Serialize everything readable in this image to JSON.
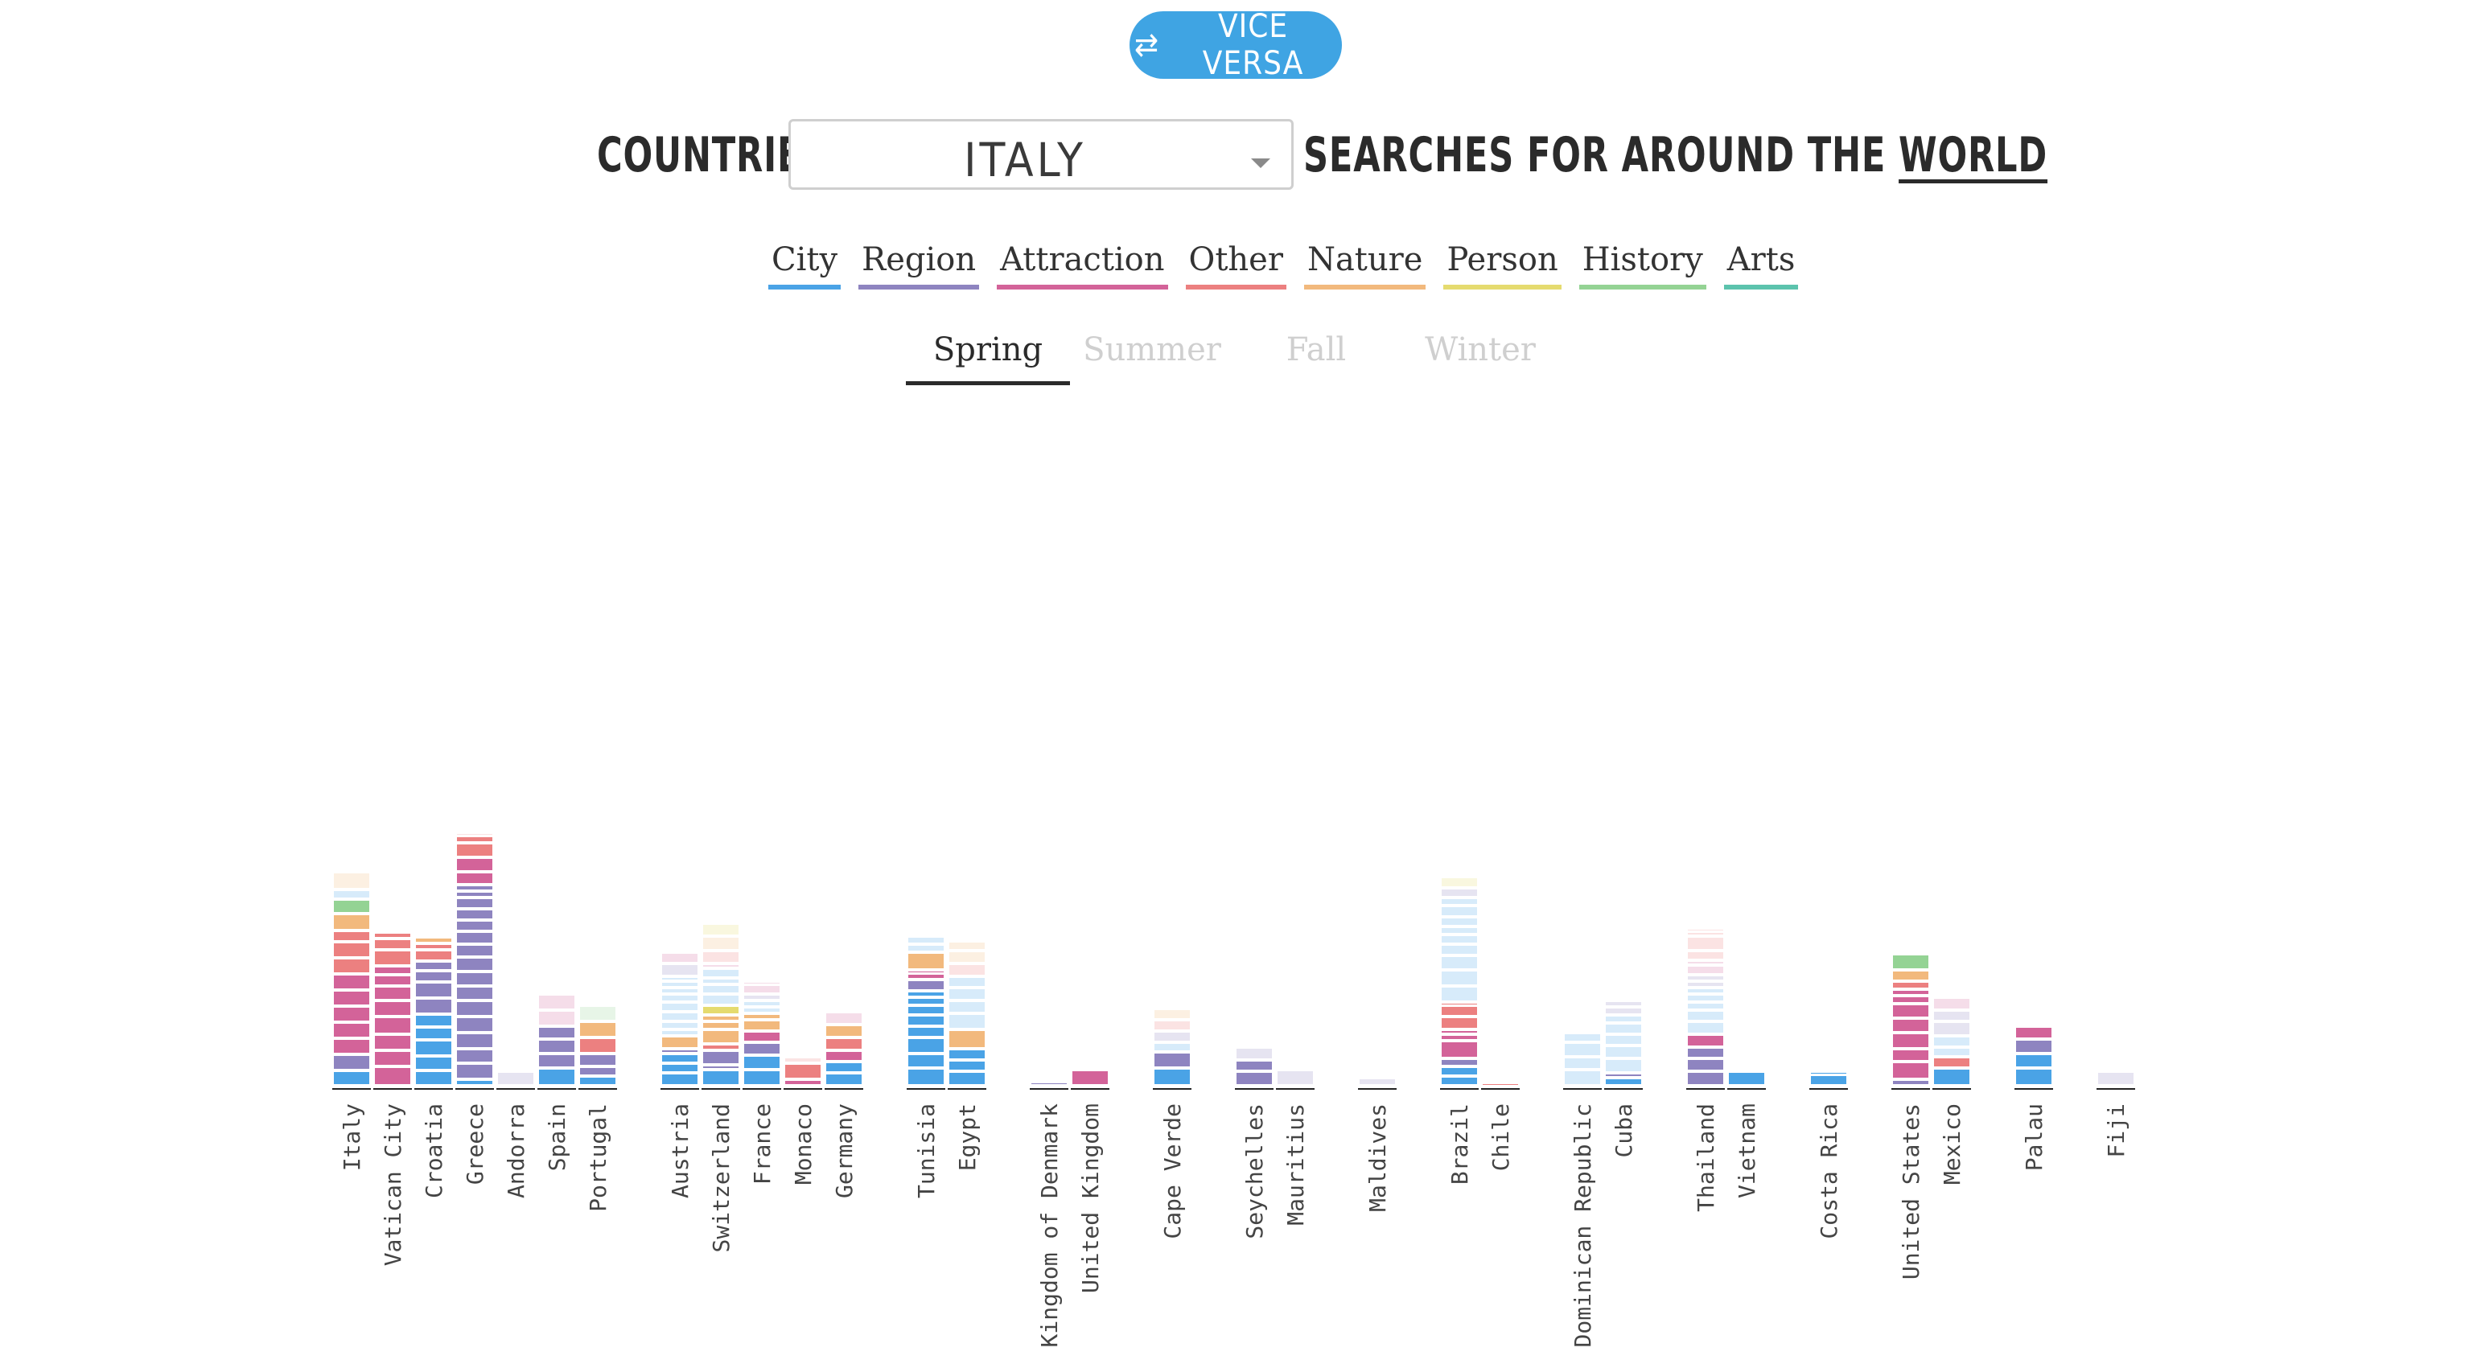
{
  "toggle": {
    "label": "VICE VERSA",
    "icon": "swap-arrows-icon"
  },
  "headline": {
    "prefix": "COUNTRIES",
    "selected_country": "ITALY",
    "suffix_1": "SEARCHES FOR AROUND THE",
    "suffix_link": "WORLD"
  },
  "categories": [
    {
      "label": "City",
      "color": "#4aa3e6"
    },
    {
      "label": "Region",
      "color": "#8e84c0"
    },
    {
      "label": "Attraction",
      "color": "#d36399"
    },
    {
      "label": "Other",
      "color": "#ec8080"
    },
    {
      "label": "Nature",
      "color": "#f2b97d"
    },
    {
      "label": "Person",
      "color": "#e5db6f"
    },
    {
      "label": "History",
      "color": "#94d394"
    },
    {
      "label": "Arts",
      "color": "#5cc3ad"
    }
  ],
  "seasons": [
    "Spring",
    "Summer",
    "Fall",
    "Winter"
  ],
  "active_season": "Spring",
  "chart_data": {
    "type": "bar",
    "subtype": "stacked-segments",
    "categories": [
      "Italy",
      "Vatican City",
      "Croatia",
      "Greece",
      "Andorra",
      "Spain",
      "Portugal",
      "Austria",
      "Switzerland",
      "France",
      "Monaco",
      "Germany",
      "Tunisia",
      "Egypt",
      "Kingdom of Denmark",
      "United Kingdom",
      "Cape Verde",
      "Seychelles",
      "Mauritius",
      "Maldives",
      "Brazil",
      "Chile",
      "Dominican Republic",
      "Cuba",
      "Thailand",
      "Vietnam",
      "Costa Rica",
      "United States",
      "Mexico",
      "Palau",
      "Fiji"
    ],
    "groups": [
      [
        0,
        1,
        2,
        3,
        4,
        5,
        6
      ],
      [
        7,
        8,
        9,
        10,
        11
      ],
      [
        12,
        13
      ],
      [
        14,
        15
      ],
      [
        16
      ],
      [
        17,
        18
      ],
      [
        19
      ],
      [
        20,
        21
      ],
      [
        22,
        23
      ],
      [
        24,
        25
      ],
      [
        26
      ],
      [
        27,
        28
      ],
      [
        29
      ],
      [
        30
      ]
    ],
    "stacks": [
      [
        [
          "City",
          19
        ],
        [
          "Region",
          20
        ],
        [
          "Attraction",
          20
        ],
        [
          "Attraction",
          20
        ],
        [
          "Attraction",
          20
        ],
        [
          "Attraction",
          20
        ],
        [
          "Attraction",
          20
        ],
        [
          "Other",
          20
        ],
        [
          "Other",
          20
        ],
        [
          "Other",
          14
        ],
        [
          "Nature",
          21
        ],
        [
          "History",
          18
        ],
        [
          "City",
          12,
          true
        ],
        [
          "Nature",
          22,
          true
        ]
      ],
      [
        [
          "Attraction",
          24
        ],
        [
          "Attraction",
          20
        ],
        [
          "Attraction",
          20
        ],
        [
          "Attraction",
          22
        ],
        [
          "Attraction",
          20
        ],
        [
          "Attraction",
          18
        ],
        [
          "Attraction",
          14
        ],
        [
          "Attraction",
          11
        ],
        [
          "Other",
          20
        ],
        [
          "Other",
          14
        ],
        [
          "Other",
          8
        ]
      ],
      [
        [
          "City",
          19
        ],
        [
          "City",
          18
        ],
        [
          "City",
          20
        ],
        [
          "City",
          16
        ],
        [
          "City",
          16
        ],
        [
          "Region",
          20
        ],
        [
          "Region",
          20
        ],
        [
          "Region",
          14
        ],
        [
          "Region",
          12
        ],
        [
          "Other",
          14
        ],
        [
          "Other",
          8
        ],
        [
          "Nature",
          8
        ]
      ],
      [
        [
          "City",
          8
        ],
        [
          "Region",
          20
        ],
        [
          "Region",
          18
        ],
        [
          "Region",
          20
        ],
        [
          "Region",
          20
        ],
        [
          "Region",
          20
        ],
        [
          "Region",
          18
        ],
        [
          "Region",
          18
        ],
        [
          "Region",
          18
        ],
        [
          "Region",
          16
        ],
        [
          "Region",
          16
        ],
        [
          "Region",
          14
        ],
        [
          "Region",
          14
        ],
        [
          "Region",
          14
        ],
        [
          "Region",
          8
        ],
        [
          "Region",
          8
        ],
        [
          "Attraction",
          16
        ],
        [
          "Attraction",
          18
        ],
        [
          "Other",
          18
        ],
        [
          "Other",
          9
        ],
        [
          "Other",
          4,
          true
        ]
      ],
      [
        [
          "Region",
          18,
          true
        ]
      ],
      [
        [
          "City",
          22
        ],
        [
          "Region",
          18
        ],
        [
          "Region",
          18
        ],
        [
          "Region",
          16
        ],
        [
          "Attraction",
          20,
          true
        ],
        [
          "Attraction",
          20,
          true
        ]
      ],
      [
        [
          "City",
          12
        ],
        [
          "Region",
          12
        ],
        [
          "Region",
          16
        ],
        [
          "Other",
          20
        ],
        [
          "Nature",
          20
        ],
        [
          "History",
          20,
          true
        ]
      ],
      [
        [
          "City",
          16
        ],
        [
          "City",
          12
        ],
        [
          "City",
          12
        ],
        [
          "Region",
          6
        ],
        [
          "Nature",
          16
        ],
        [
          "City",
          8,
          true
        ],
        [
          "City",
          10,
          true
        ],
        [
          "City",
          12,
          true
        ],
        [
          "City",
          12,
          true
        ],
        [
          "City",
          10,
          true
        ],
        [
          "City",
          8,
          true
        ],
        [
          "City",
          8,
          true
        ],
        [
          "City",
          6,
          true
        ],
        [
          "Region",
          16,
          true
        ],
        [
          "Attraction",
          14,
          true
        ]
      ],
      [
        [
          "City",
          20
        ],
        [
          "Region",
          6
        ],
        [
          "Region",
          18
        ],
        [
          "Other",
          8
        ],
        [
          "Nature",
          18
        ],
        [
          "Nature",
          10
        ],
        [
          "Nature",
          8
        ],
        [
          "Person",
          12
        ],
        [
          "City",
          14,
          true
        ],
        [
          "City",
          12,
          true
        ],
        [
          "City",
          8,
          true
        ],
        [
          "City",
          12,
          true
        ],
        [
          "Attraction",
          6,
          true
        ],
        [
          "Other",
          16,
          true
        ],
        [
          "Nature",
          18,
          true
        ],
        [
          "Person",
          16,
          true
        ]
      ],
      [
        [
          "City",
          20
        ],
        [
          "City",
          18
        ],
        [
          "Region",
          16
        ],
        [
          "Attraction",
          14
        ],
        [
          "Nature",
          14
        ],
        [
          "Nature",
          8
        ],
        [
          "City",
          8,
          true
        ],
        [
          "City",
          8,
          true
        ],
        [
          "Region",
          8,
          true
        ],
        [
          "Attraction",
          12,
          true
        ],
        [
          "Attraction",
          4,
          true
        ]
      ],
      [
        [
          "Attraction",
          8
        ],
        [
          "Other",
          20
        ],
        [
          "Other",
          8,
          true
        ]
      ],
      [
        [
          "City",
          16
        ],
        [
          "City",
          14
        ],
        [
          "Attraction",
          14
        ],
        [
          "Other",
          16
        ],
        [
          "Nature",
          16
        ],
        [
          "Attraction",
          16,
          true
        ]
      ],
      [
        [
          "City",
          22
        ],
        [
          "City",
          18
        ],
        [
          "City",
          20
        ],
        [
          "City",
          14
        ],
        [
          "City",
          14
        ],
        [
          "City",
          12
        ],
        [
          "City",
          10
        ],
        [
          "City",
          8
        ],
        [
          "Region",
          14
        ],
        [
          "Attraction",
          8
        ],
        [
          "Attraction",
          4
        ],
        [
          "Nature",
          22
        ],
        [
          "City",
          10,
          true
        ],
        [
          "City",
          10,
          true
        ]
      ],
      [
        [
          "City",
          18
        ],
        [
          "City",
          14
        ],
        [
          "City",
          14
        ],
        [
          "Nature",
          24
        ],
        [
          "City",
          20,
          true
        ],
        [
          "City",
          16,
          true
        ],
        [
          "City",
          16,
          true
        ],
        [
          "City",
          14,
          true
        ],
        [
          "Other",
          16,
          true
        ],
        [
          "Nature",
          16,
          true
        ],
        [
          "Nature",
          12,
          true
        ]
      ],
      [
        [
          "Region",
          5
        ]
      ],
      [
        [
          "Attraction",
          20
        ]
      ],
      [
        [
          "City",
          22
        ],
        [
          "Region",
          20
        ],
        [
          "City",
          12,
          true
        ],
        [
          "Region",
          14,
          true
        ],
        [
          "Other",
          14,
          true
        ],
        [
          "Nature",
          14,
          true
        ]
      ],
      [
        [
          "Region",
          18
        ],
        [
          "Region",
          14
        ],
        [
          "Region",
          16,
          true
        ]
      ],
      [
        [
          "Region",
          20,
          true
        ]
      ],
      [
        [
          "Region",
          10,
          true
        ]
      ],
      [
        [
          "City",
          12
        ],
        [
          "City",
          12
        ],
        [
          "Region",
          10
        ],
        [
          "Attraction",
          22
        ],
        [
          "Attraction",
          8
        ],
        [
          "Attraction",
          6
        ],
        [
          "Other",
          16
        ],
        [
          "Other",
          14
        ],
        [
          "Other",
          4
        ],
        [
          "City",
          20,
          true
        ],
        [
          "City",
          20,
          true
        ],
        [
          "City",
          18,
          true
        ],
        [
          "City",
          14,
          true
        ],
        [
          "City",
          12,
          true
        ],
        [
          "City",
          10,
          true
        ],
        [
          "City",
          12,
          true
        ],
        [
          "City",
          14,
          true
        ],
        [
          "City",
          10,
          true
        ],
        [
          "Region",
          12,
          true
        ],
        [
          "Person",
          14,
          true
        ]
      ],
      [
        [
          "Other",
          4
        ]
      ],
      [
        [
          "City",
          20,
          true
        ],
        [
          "City",
          16,
          true
        ],
        [
          "City",
          18,
          true
        ],
        [
          "City",
          12,
          true
        ]
      ],
      [
        [
          "City",
          10
        ],
        [
          "Region",
          6
        ],
        [
          "City",
          18,
          true
        ],
        [
          "City",
          16,
          true
        ],
        [
          "City",
          14,
          true
        ],
        [
          "City",
          14,
          true
        ],
        [
          "City",
          10,
          true
        ],
        [
          "Region",
          10,
          true
        ],
        [
          "Region",
          8,
          true
        ]
      ],
      [
        [
          "Region",
          18
        ],
        [
          "Region",
          16
        ],
        [
          "Region",
          14
        ],
        [
          "Attraction",
          16
        ],
        [
          "City",
          16,
          true
        ],
        [
          "City",
          14,
          true
        ],
        [
          "City",
          10,
          true
        ],
        [
          "City",
          10,
          true
        ],
        [
          "City",
          8,
          true
        ],
        [
          "Region",
          8,
          true
        ],
        [
          "Region",
          8,
          true
        ],
        [
          "Attraction",
          12,
          true
        ],
        [
          "Attraction",
          6,
          true
        ],
        [
          "Other",
          12,
          true
        ],
        [
          "Other",
          18,
          true
        ],
        [
          "Other",
          6,
          true
        ],
        [
          "Other",
          4,
          true
        ]
      ],
      [
        [
          "City",
          18
        ]
      ],
      [
        [
          "City",
          14
        ],
        [
          "City",
          4
        ]
      ],
      [
        [
          "Region",
          8
        ],
        [
          "Attraction",
          22
        ],
        [
          "Attraction",
          16
        ],
        [
          "Attraction",
          20
        ],
        [
          "Attraction",
          18
        ],
        [
          "Attraction",
          18
        ],
        [
          "Attraction",
          10
        ],
        [
          "Attraction",
          8
        ],
        [
          "Other",
          10
        ],
        [
          "Nature",
          14
        ],
        [
          "History",
          20
        ]
      ],
      [
        [
          "City",
          22
        ],
        [
          "Other",
          14
        ],
        [
          "City",
          12,
          true
        ],
        [
          "City",
          14,
          true
        ],
        [
          "Region",
          18,
          true
        ],
        [
          "Region",
          14,
          true
        ],
        [
          "Attraction",
          16,
          true
        ]
      ],
      [
        [
          "City",
          22
        ],
        [
          "City",
          18
        ],
        [
          "Region",
          18
        ],
        [
          "Attraction",
          16
        ]
      ],
      [
        [
          "Region",
          18,
          true
        ]
      ]
    ],
    "xlabel": "",
    "ylabel": ""
  }
}
